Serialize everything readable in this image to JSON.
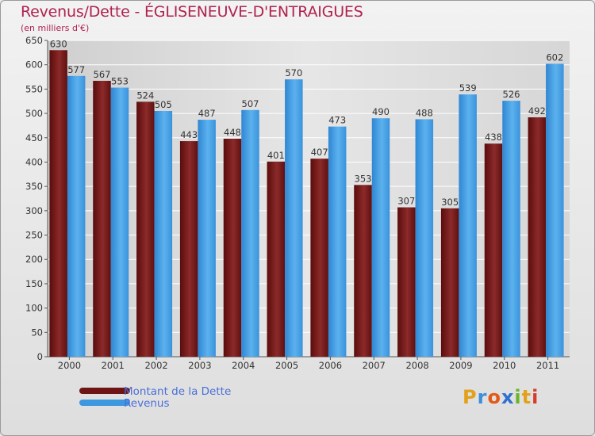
{
  "header": {
    "title": "Revenus/Dette - ÉGLISENEUVE-D'ENTRAIGUES",
    "subtitle": "(en milliers d'€)"
  },
  "legend": {
    "items": [
      {
        "label": "Montant de la Dette",
        "color": "#6e1414"
      },
      {
        "label": "Revenus",
        "color": "#3d98e0"
      }
    ]
  },
  "logo": {
    "text": "Proxiti",
    "letters": [
      "P",
      "r",
      "o",
      "x",
      "i",
      "t",
      "i"
    ],
    "colors": [
      "#e2a11a",
      "#3b8fd8",
      "#e25a1a",
      "#2f6fd0",
      "#6ab52a",
      "#e2a11a",
      "#d83b2a"
    ]
  },
  "colors": {
    "title": "#b0224e",
    "dette": "#6e1414",
    "revenus": "#3d98e0",
    "gridline": "#ffffff",
    "plot_bg": "#dcdcdc"
  },
  "chart_data": {
    "type": "bar",
    "categories": [
      "2000",
      "2001",
      "2002",
      "2003",
      "2004",
      "2005",
      "2006",
      "2007",
      "2008",
      "2009",
      "2010",
      "2011"
    ],
    "series": [
      {
        "name": "Montant de la Dette",
        "values": [
          630,
          567,
          524,
          443,
          448,
          401,
          407,
          353,
          307,
          305,
          438,
          492
        ]
      },
      {
        "name": "Revenus",
        "values": [
          577,
          553,
          505,
          487,
          507,
          570,
          473,
          490,
          488,
          539,
          526,
          602
        ]
      }
    ],
    "ylim": [
      0,
      650
    ],
    "yticks": [
      0,
      50,
      100,
      150,
      200,
      250,
      300,
      350,
      400,
      450,
      500,
      550,
      600,
      650
    ],
    "grid": true,
    "legend_position": "bottom-left"
  }
}
